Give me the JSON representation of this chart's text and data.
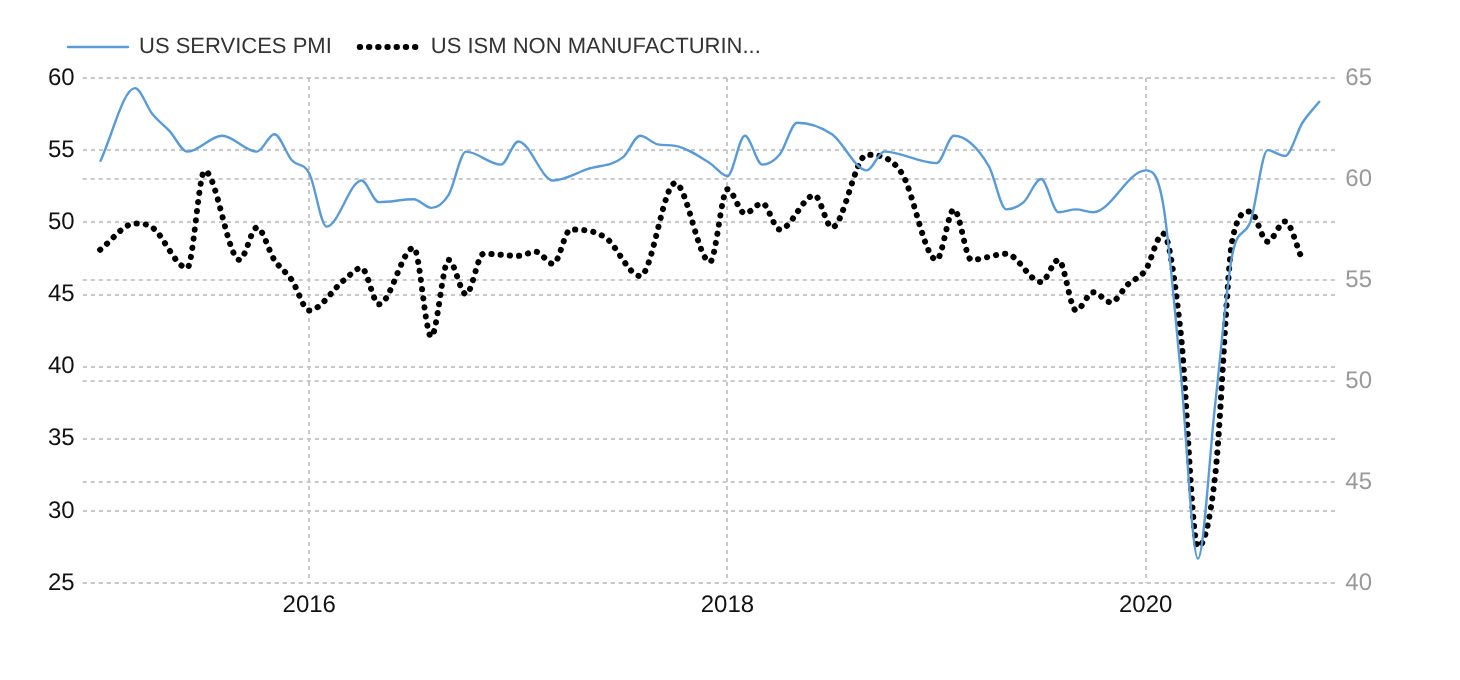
{
  "chart_data": {
    "type": "line",
    "xlim": [
      "2014-12",
      "2020-12"
    ],
    "xticks": [
      "2016",
      "2018",
      "2020"
    ],
    "ylim": [
      25,
      60
    ],
    "yticks": [
      25,
      30,
      35,
      40,
      45,
      50,
      55,
      60
    ],
    "y2lim": [
      40,
      65
    ],
    "y2ticks": [
      40,
      45,
      50,
      55,
      60,
      65
    ],
    "grid": true,
    "legend": "top left",
    "marker": "none",
    "series": [
      {
        "name": "US SERVICES PMI",
        "color": "#5b9bd5",
        "line_style": "solid",
        "x": [
          "2015-01",
          "2015-03",
          "2015-04",
          "2015-05",
          "2015-06",
          "2015-08",
          "2015-10",
          "2015-11",
          "2015-12",
          "2016-01",
          "2016-02",
          "2016-04",
          "2016-05",
          "2016-07",
          "2016-08",
          "2016-09",
          "2016-10",
          "2016-12",
          "2017-01",
          "2017-03",
          "2017-05",
          "2017-07",
          "2017-08",
          "2017-09",
          "2017-10",
          "2017-12",
          "2018-01",
          "2018-02",
          "2018-03",
          "2018-04",
          "2018-05",
          "2018-07",
          "2018-09",
          "2018-10",
          "2019-01",
          "2019-02",
          "2019-04",
          "2019-05",
          "2019-06",
          "2019-07",
          "2019-08",
          "2019-09",
          "2019-10",
          "2020-01",
          "2020-02",
          "2020-03",
          "2020-04",
          "2020-05",
          "2020-06",
          "2020-07",
          "2020-08",
          "2020-09",
          "2020-10",
          "2020-11"
        ],
        "values": [
          54.2,
          59.3,
          57.5,
          56.3,
          54.9,
          56.0,
          54.9,
          56.1,
          54.3,
          53.4,
          49.7,
          52.9,
          51.4,
          51.6,
          51.0,
          51.9,
          54.9,
          54.0,
          55.6,
          52.9,
          53.7,
          54.5,
          56.0,
          55.4,
          55.3,
          54.1,
          53.2,
          56.0,
          54.0,
          54.7,
          56.9,
          56.1,
          53.6,
          54.9,
          54.1,
          56.0,
          53.9,
          50.9,
          51.4,
          53.0,
          50.7,
          50.9,
          50.7,
          53.6,
          51.3,
          39.8,
          26.7,
          37.5,
          47.9,
          50.0,
          55.0,
          54.6,
          56.9,
          58.4
        ]
      },
      {
        "name": "US ISM NON MANUFACTURIN...",
        "color": "#000000",
        "line_style": "dotted",
        "axis": "y2",
        "x": [
          "2015-01",
          "2015-03",
          "2015-04",
          "2015-06",
          "2015-07",
          "2015-09",
          "2015-10",
          "2015-11",
          "2015-12",
          "2016-01",
          "2016-03",
          "2016-04",
          "2016-05",
          "2016-07",
          "2016-08",
          "2016-09",
          "2016-10",
          "2016-11",
          "2017-01",
          "2017-02",
          "2017-03",
          "2017-04",
          "2017-06",
          "2017-08",
          "2017-10",
          "2017-12",
          "2018-01",
          "2018-02",
          "2018-03",
          "2018-04",
          "2018-06",
          "2018-07",
          "2018-09",
          "2018-11",
          "2019-01",
          "2019-02",
          "2019-03",
          "2019-05",
          "2019-07",
          "2019-08",
          "2019-09",
          "2019-10",
          "2019-11",
          "2019-12",
          "2020-01",
          "2020-02",
          "2020-03",
          "2020-04",
          "2020-05",
          "2020-06",
          "2020-07",
          "2020-08",
          "2020-09",
          "2020-10"
        ],
        "values": [
          56.5,
          57.8,
          57.6,
          55.6,
          60.4,
          56.0,
          57.6,
          56.0,
          55.0,
          53.5,
          55.0,
          55.6,
          53.8,
          56.6,
          52.2,
          56.0,
          54.3,
          56.3,
          56.2,
          56.4,
          55.8,
          57.5,
          57.1,
          55.2,
          59.8,
          55.9,
          59.5,
          58.3,
          58.8,
          57.5,
          59.2,
          57.6,
          61.2,
          60.3,
          56.0,
          58.5,
          56.0,
          56.3,
          54.9,
          56.0,
          53.5,
          54.4,
          53.9,
          54.8,
          55.5,
          57.3,
          52.5,
          41.8,
          45.4,
          57.1,
          58.4,
          56.9,
          57.9,
          56.0
        ]
      }
    ]
  }
}
